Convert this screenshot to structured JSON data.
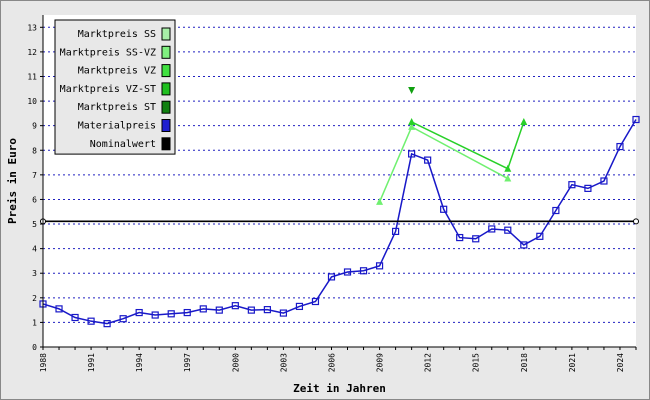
{
  "chart_data": {
    "type": "line",
    "xlabel": "Zeit in Jahren",
    "ylabel": "Preis in Euro",
    "xlim": [
      1988,
      2025
    ],
    "ylim": [
      0,
      13.5
    ],
    "x_ticks": [
      "1988",
      "1991",
      "1994",
      "1997",
      "2000",
      "2003",
      "2006",
      "2009",
      "2012",
      "2015",
      "2018",
      "2021",
      "2024"
    ],
    "y_ticks": [
      "0",
      "1",
      "2",
      "3",
      "4",
      "5",
      "6",
      "7",
      "8",
      "9",
      "10",
      "11",
      "12",
      "13"
    ],
    "grid": "horizontal-dotted",
    "legend_position": "top-left",
    "legend": [
      {
        "name": "Marktpreis SS",
        "color": "#a8f0a8"
      },
      {
        "name": "Marktpreis SS-VZ",
        "color": "#80f080"
      },
      {
        "name": "Marktpreis VZ",
        "color": "#40e040"
      },
      {
        "name": "Marktpreis VZ-ST",
        "color": "#20c020"
      },
      {
        "name": "Marktpreis ST",
        "color": "#108010"
      },
      {
        "name": "Materialpreis",
        "color": "#2020d0"
      },
      {
        "name": "Nominalwert",
        "color": "#000000"
      }
    ],
    "series": [
      {
        "name": "Materialpreis",
        "color": "#1818c8",
        "marker": "square",
        "x": [
          1988,
          1989,
          1990,
          1991,
          1992,
          1993,
          1994,
          1995,
          1996,
          1997,
          1998,
          1999,
          2000,
          2001,
          2002,
          2003,
          2004,
          2005,
          2006,
          2007,
          2008,
          2009,
          2010,
          2011,
          2012,
          2013,
          2014,
          2015,
          2016,
          2017,
          2018,
          2019,
          2020,
          2021,
          2022,
          2023,
          2024,
          2025
        ],
        "y": [
          1.75,
          1.55,
          1.2,
          1.05,
          0.95,
          1.15,
          1.4,
          1.3,
          1.35,
          1.4,
          1.55,
          1.5,
          1.68,
          1.5,
          1.52,
          1.38,
          1.65,
          1.85,
          2.85,
          3.05,
          3.1,
          3.3,
          4.7,
          7.85,
          7.6,
          5.6,
          4.45,
          4.4,
          4.8,
          4.75,
          4.15,
          4.5,
          5.55,
          6.6,
          6.45,
          6.75,
          8.15,
          9.25
        ]
      },
      {
        "name": "Nominalwert",
        "color": "#000000",
        "marker": "circle",
        "x": [
          1988,
          2025
        ],
        "y": [
          5.11,
          5.11
        ]
      },
      {
        "name": "Marktpreis SS-VZ",
        "color": "#70f070",
        "marker": "triangle-up",
        "x": [
          2009,
          2011,
          2017
        ],
        "y": [
          5.9,
          8.95,
          6.85
        ]
      },
      {
        "name": "Marktpreis VZ",
        "color": "#28d028",
        "marker": "triangle-up",
        "x": [
          2011,
          2017,
          2018
        ],
        "y": [
          9.15,
          7.25,
          9.15
        ]
      },
      {
        "name": "Marktpreis ST",
        "color": "#10a010",
        "marker": "triangle-down",
        "x": [
          2011
        ],
        "y": [
          10.45
        ]
      }
    ]
  }
}
